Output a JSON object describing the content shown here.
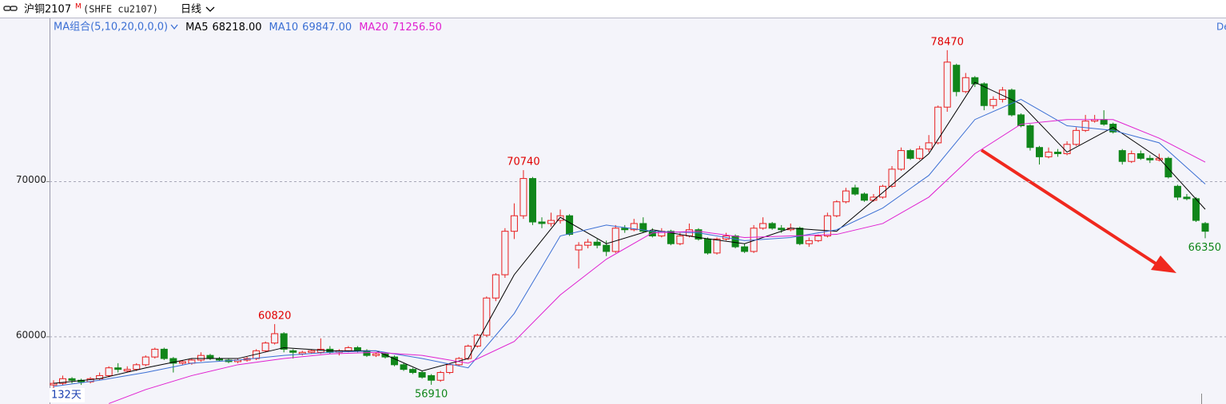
{
  "header": {
    "symbol": "沪铜2107",
    "superscript": "M",
    "code": "(SHFE cu2107)",
    "period": "日线"
  },
  "chart_data": {
    "type": "candlestick",
    "indicator": "MA组合(5,10,20,0,0,0)",
    "corner_text": "De",
    "period_label": "132天",
    "ylim": [
      55670,
      80520
    ],
    "yticks": [
      60000,
      70000
    ],
    "grid": true,
    "up_color": "#e81f1f",
    "down_color": "#10861a",
    "ohlc": [
      [
        56900,
        57200,
        56700,
        57000
      ],
      [
        57000,
        57500,
        56900,
        57300
      ],
      [
        57300,
        57400,
        57000,
        57200
      ],
      [
        57200,
        57300,
        56900,
        57100
      ],
      [
        57100,
        57400,
        57000,
        57300
      ],
      [
        57300,
        57700,
        57200,
        57500
      ],
      [
        57500,
        58100,
        57400,
        58000
      ],
      [
        58000,
        58300,
        57700,
        57900
      ],
      [
        57800,
        58100,
        57700,
        57900
      ],
      [
        57900,
        58300,
        57800,
        58200
      ],
      [
        58200,
        58800,
        58100,
        58700
      ],
      [
        58700,
        59300,
        58600,
        59200
      ],
      [
        59200,
        59300,
        58500,
        58600
      ],
      [
        58600,
        58700,
        57700,
        58300
      ],
      [
        58300,
        58500,
        58200,
        58400
      ],
      [
        58300,
        58600,
        58200,
        58500
      ],
      [
        58500,
        59000,
        58400,
        58800
      ],
      [
        58800,
        58900,
        58500,
        58600
      ],
      [
        58600,
        58700,
        58400,
        58500
      ],
      [
        58500,
        58600,
        58300,
        58400
      ],
      [
        58400,
        58600,
        58300,
        58500
      ],
      [
        58500,
        58700,
        58400,
        58600
      ],
      [
        58600,
        59200,
        58500,
        59100
      ],
      [
        59100,
        59700,
        59000,
        59600
      ],
      [
        59600,
        60820,
        59500,
        60200
      ],
      [
        60200,
        60300,
        59000,
        59200
      ],
      [
        59100,
        59200,
        58600,
        59000
      ],
      [
        58900,
        59100,
        58800,
        59000
      ],
      [
        59000,
        59200,
        58900,
        59100
      ],
      [
        59000,
        59900,
        58900,
        59200
      ],
      [
        59200,
        59400,
        58900,
        59000
      ],
      [
        59000,
        59200,
        58800,
        59100
      ],
      [
        59100,
        59400,
        59000,
        59300
      ],
      [
        59300,
        59400,
        59000,
        59100
      ],
      [
        59100,
        59200,
        58700,
        58800
      ],
      [
        58800,
        59000,
        58700,
        58900
      ],
      [
        58900,
        59000,
        58600,
        58700
      ],
      [
        58700,
        58800,
        58100,
        58200
      ],
      [
        58200,
        58300,
        57800,
        57900
      ],
      [
        57900,
        58000,
        57600,
        57700
      ],
      [
        57700,
        57800,
        57300,
        57400
      ],
      [
        57500,
        57600,
        56910,
        57200
      ],
      [
        57200,
        57800,
        57100,
        57700
      ],
      [
        57700,
        58300,
        57600,
        58200
      ],
      [
        58200,
        58700,
        58100,
        58600
      ],
      [
        58600,
        59500,
        58500,
        59400
      ],
      [
        59400,
        60200,
        59300,
        60100
      ],
      [
        60100,
        62600,
        60000,
        62500
      ],
      [
        62500,
        64100,
        62300,
        64000
      ],
      [
        64000,
        67000,
        63800,
        66800
      ],
      [
        66800,
        68600,
        66300,
        67800
      ],
      [
        67800,
        70740,
        67600,
        70200
      ],
      [
        70200,
        70300,
        67200,
        67400
      ],
      [
        67400,
        67700,
        67000,
        67300
      ],
      [
        67300,
        68000,
        67100,
        67500
      ],
      [
        67500,
        68200,
        67300,
        67800
      ],
      [
        67800,
        67900,
        66500,
        66600
      ],
      [
        65600,
        66100,
        64400,
        65900
      ],
      [
        65900,
        66300,
        65700,
        66100
      ],
      [
        66100,
        66300,
        65700,
        65900
      ],
      [
        65900,
        66200,
        65200,
        65500
      ],
      [
        65500,
        67200,
        65400,
        67000
      ],
      [
        67000,
        67200,
        66700,
        66900
      ],
      [
        66900,
        67600,
        66800,
        67300
      ],
      [
        67300,
        67700,
        66700,
        66800
      ],
      [
        66800,
        67000,
        66400,
        66500
      ],
      [
        66500,
        67000,
        66400,
        66800
      ],
      [
        66800,
        66900,
        65900,
        66000
      ],
      [
        66000,
        66700,
        65900,
        66500
      ],
      [
        66500,
        67300,
        66400,
        66900
      ],
      [
        66900,
        67000,
        66200,
        66300
      ],
      [
        66300,
        66400,
        65300,
        65400
      ],
      [
        65400,
        66400,
        65300,
        66300
      ],
      [
        66300,
        66700,
        66200,
        66500
      ],
      [
        66500,
        66600,
        65700,
        65800
      ],
      [
        65800,
        66000,
        65400,
        65500
      ],
      [
        65500,
        67200,
        65400,
        67000
      ],
      [
        67000,
        67700,
        66900,
        67300
      ],
      [
        67300,
        67400,
        66900,
        67000
      ],
      [
        67000,
        67200,
        66700,
        66900
      ],
      [
        66900,
        67300,
        66800,
        67000
      ],
      [
        67000,
        67100,
        65900,
        66000
      ],
      [
        66000,
        66400,
        65800,
        66200
      ],
      [
        66200,
        66600,
        66100,
        66500
      ],
      [
        66500,
        68000,
        66400,
        67800
      ],
      [
        67800,
        68800,
        67700,
        68700
      ],
      [
        68700,
        69600,
        68600,
        69400
      ],
      [
        69600,
        69800,
        69100,
        69200
      ],
      [
        69200,
        69300,
        68700,
        68800
      ],
      [
        68800,
        69200,
        68700,
        69000
      ],
      [
        69000,
        69800,
        68900,
        69700
      ],
      [
        69700,
        71000,
        69600,
        70800
      ],
      [
        70800,
        72200,
        70700,
        72000
      ],
      [
        72000,
        72100,
        71400,
        71500
      ],
      [
        71500,
        72300,
        71400,
        72100
      ],
      [
        72100,
        73000,
        71900,
        72500
      ],
      [
        72500,
        74900,
        72400,
        74800
      ],
      [
        74800,
        78470,
        74500,
        77700
      ],
      [
        77500,
        77600,
        75500,
        75800
      ],
      [
        75800,
        77000,
        75700,
        76700
      ],
      [
        76700,
        76800,
        76100,
        76300
      ],
      [
        76300,
        76400,
        74600,
        74900
      ],
      [
        74900,
        75500,
        74700,
        75300
      ],
      [
        75300,
        76100,
        75100,
        75900
      ],
      [
        75900,
        76000,
        74200,
        74300
      ],
      [
        74300,
        74400,
        73500,
        73600
      ],
      [
        73600,
        73700,
        72000,
        72200
      ],
      [
        72200,
        72300,
        71100,
        71600
      ],
      [
        71600,
        72200,
        71500,
        71900
      ],
      [
        71900,
        72100,
        71600,
        71800
      ],
      [
        71800,
        72600,
        71700,
        72400
      ],
      [
        72400,
        73500,
        72300,
        73300
      ],
      [
        73300,
        74300,
        73200,
        73900
      ],
      [
        73900,
        74300,
        73800,
        74000
      ],
      [
        74000,
        74600,
        73600,
        73700
      ],
      [
        73700,
        73800,
        73100,
        73200
      ],
      [
        72000,
        72100,
        71100,
        71300
      ],
      [
        71300,
        72000,
        71200,
        71800
      ],
      [
        71800,
        72000,
        71400,
        71500
      ],
      [
        71500,
        71700,
        71200,
        71400
      ],
      [
        71400,
        71800,
        71300,
        71500
      ],
      [
        71500,
        71600,
        70200,
        70300
      ],
      [
        69700,
        69800,
        68800,
        69000
      ],
      [
        69000,
        69200,
        68800,
        68900
      ],
      [
        68900,
        69000,
        67400,
        67500
      ],
      [
        67300,
        67400,
        66350,
        66800
      ]
    ],
    "series": [
      {
        "name": "MA5",
        "legend_value": "68218.00",
        "color": "#000000",
        "x": [
          0,
          5,
          10,
          15,
          20,
          25,
          30,
          35,
          40,
          45,
          50,
          55,
          60,
          65,
          70,
          75,
          80,
          85,
          90,
          95,
          100,
          105,
          110,
          115,
          120,
          125
        ],
        "values": [
          57000,
          57300,
          58000,
          58600,
          58600,
          59300,
          59100,
          59100,
          57800,
          58600,
          64000,
          67700,
          66000,
          66900,
          66400,
          66000,
          67000,
          66800,
          69300,
          71800,
          76400,
          75000,
          71900,
          73500,
          71500,
          68218
        ]
      },
      {
        "name": "MA10",
        "legend_value": "69847.00",
        "color": "#3b6fd4",
        "x": [
          0,
          5,
          10,
          15,
          20,
          25,
          30,
          35,
          40,
          45,
          50,
          55,
          60,
          65,
          70,
          75,
          80,
          85,
          90,
          95,
          100,
          105,
          110,
          115,
          120,
          125
        ],
        "values": [
          56800,
          57200,
          57700,
          58300,
          58500,
          58800,
          59000,
          59100,
          58600,
          58000,
          61500,
          66500,
          67200,
          66800,
          66700,
          66200,
          66400,
          66900,
          68300,
          70400,
          74000,
          75300,
          73600,
          73300,
          72500,
          69847
        ]
      },
      {
        "name": "MA20",
        "legend_value": "71256.50",
        "color": "#e020d0",
        "x": [
          6,
          10,
          15,
          20,
          25,
          30,
          35,
          40,
          45,
          50,
          55,
          60,
          65,
          70,
          75,
          80,
          85,
          90,
          95,
          100,
          105,
          110,
          115,
          120,
          125
        ],
        "values": [
          55700,
          56600,
          57500,
          58200,
          58600,
          58900,
          59000,
          58800,
          58300,
          59700,
          62700,
          65000,
          66700,
          66800,
          66400,
          66500,
          66600,
          67300,
          69000,
          71800,
          73700,
          74000,
          74000,
          72800,
          71256.5
        ]
      }
    ],
    "annotations": [
      {
        "index": 97,
        "value": 78470,
        "color": "#e00000",
        "position": "above"
      },
      {
        "index": 51,
        "value": 70740,
        "color": "#e00000",
        "position": "above"
      },
      {
        "index": 24,
        "value": 60820,
        "color": "#e00000",
        "position": "above"
      },
      {
        "index": 41,
        "value": 56910,
        "color": "#10861a",
        "position": "below"
      },
      {
        "index": 125,
        "value": 66350,
        "color": "#10861a",
        "position": "below"
      }
    ]
  }
}
